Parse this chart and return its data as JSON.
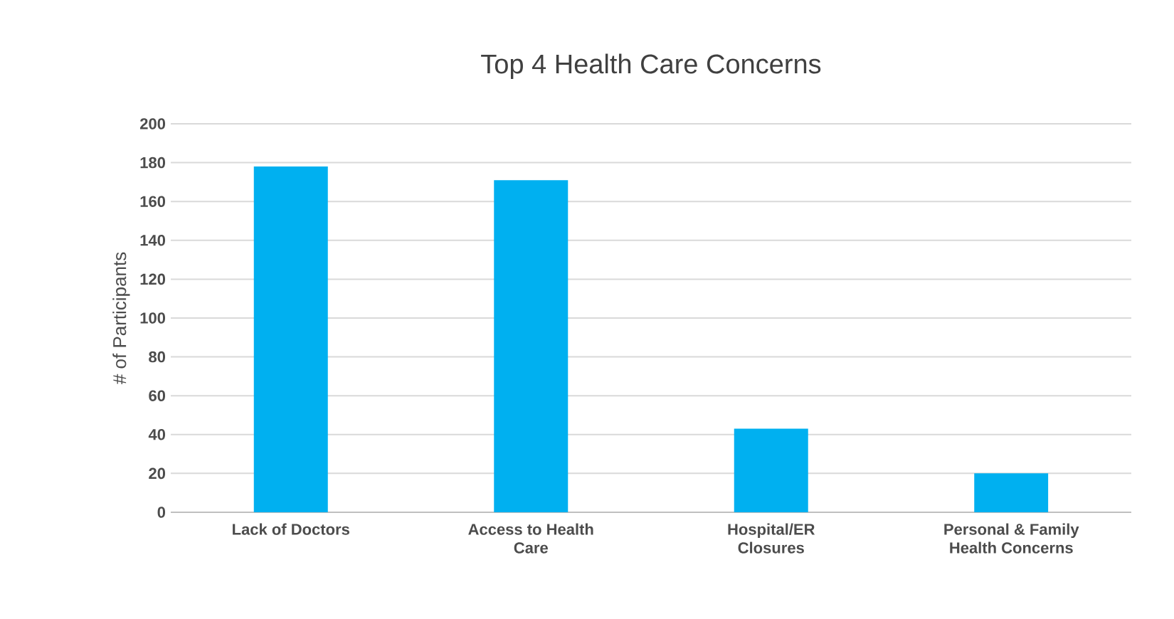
{
  "chart_data": {
    "type": "bar",
    "title": "Top 4 Health Care Concerns",
    "ylabel": "# of Participants",
    "categories": [
      "Lack of Doctors",
      "Access to Health Care",
      "Hospital/ER Closures",
      "Personal & Family Health Concerns"
    ],
    "values": [
      178,
      171,
      43,
      20
    ],
    "color": "#00b0f0",
    "ylim": [
      0,
      200
    ],
    "yticks": [
      0,
      20,
      40,
      60,
      80,
      100,
      120,
      140,
      160,
      180,
      200
    ],
    "grid": "y"
  }
}
